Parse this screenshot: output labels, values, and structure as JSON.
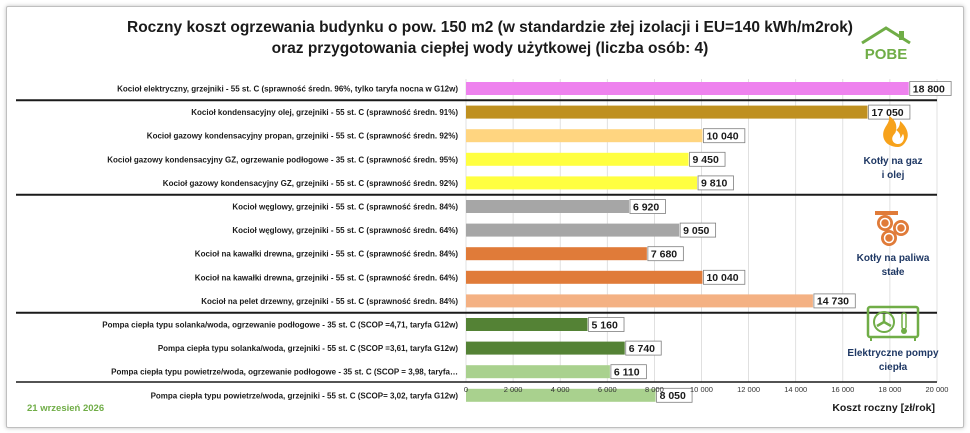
{
  "title_lines": [
    "Roczny koszt ogrzewania budynku o pow. 150 m2 (w standardzie złej izolacji i EU=140 kWh/m2rok)",
    "oraz przygotowania ciepłej wody użytkowej (liczba osób: 4)"
  ],
  "logo_text": "POBE",
  "date_label": "21 wrzesień 2026",
  "groups": [
    {
      "label_lines": [
        "Kotły na gaz",
        "i olej"
      ],
      "icon": "flame-icon"
    },
    {
      "label_lines": [
        "Kotły na paliwa",
        "stałe"
      ],
      "icon": "firewood-logs-icon"
    },
    {
      "label_lines": [
        "Elektryczne pompy",
        "ciepła"
      ],
      "icon": "heat-pump-icon"
    }
  ],
  "colors": {
    "title": "#1a1a1a",
    "group_label": "#1f3864",
    "date": "#70ad47",
    "logo": "#70ad47",
    "flame": "#f7a21b"
  },
  "chart_data": {
    "type": "bar",
    "orientation": "horizontal",
    "xlabel": "Koszt roczny [zł/rok]",
    "xlim": [
      0,
      20000
    ],
    "x_ticks": [
      "0",
      "2 000",
      "4 000",
      "6 000",
      "8 000",
      "10 000",
      "12 000",
      "14 000",
      "16 000",
      "18 000",
      "20 000"
    ],
    "grid": true,
    "categories": [
      "Kocioł  elektryczny,  grzejniki - 55 st. C  (sprawność średn. 96%, tylko taryfa nocna w G12w)",
      "Kocioł  kondensacyjny olej,  grzejniki - 55 st. C  (sprawność średn. 91%)",
      "Kocioł gazowy kondensacyjny propan, grzejniki - 55 st. C (sprawność średn. 92%)",
      "Kocioł gazowy kondensacyjny GZ, ogrzewanie podłogowe - 35 st. C (sprawność średn. 95%)",
      "Kocioł gazowy kondensacyjny GZ, grzejniki - 55 st. C (sprawność średn. 92%)",
      "Kocioł węglowy,  grzejniki - 55 st. C (sprawność średn. 84%)",
      "Kocioł węglowy,  grzejniki - 55 st. C (sprawność średn. 64%)",
      "Kocioł na kawałki drewna, grzejniki - 55 st. C (sprawność średn. 84%)",
      "Kocioł na kawałki drewna, grzejniki - 55 st. C (sprawność średn. 64%)",
      "Kocioł na pelet drzewny, grzejniki - 55 st. C (sprawność średn. 84%)",
      "Pompa ciepła typu solanka/woda, ogrzewanie podłogowe - 35 st. C (SCOP =4,71, taryfa G12w)",
      "Pompa ciepła typu solanka/woda, grzejniki - 55 st. C (SCOP =3,61, taryfa G12w)",
      "Pompa ciepła typu powietrze/woda, ogrzewanie podłogowe - 35 st. C (SCOP = 3,98, taryfa…",
      "Pompa ciepła typu powietrze/woda, grzejniki - 55 st. C (SCOP= 3,02, taryfa G12w)"
    ],
    "values": [
      18800,
      17050,
      10040,
      9450,
      9810,
      6920,
      9050,
      7680,
      10040,
      14730,
      5160,
      6740,
      6110,
      8050
    ],
    "value_labels": [
      "18 800",
      "17 050",
      "10 040",
      "9 450",
      "9 810",
      "6 920",
      "9 050",
      "7 680",
      "10 040",
      "14 730",
      "5 160",
      "6 740",
      "6 110",
      "8 050"
    ],
    "bar_colors": [
      "#ee82ee",
      "#bf9020",
      "#ffd580",
      "#ffff40",
      "#ffff40",
      "#a6a6a6",
      "#a6a6a6",
      "#e07b39",
      "#e07b39",
      "#f4b183",
      "#548235",
      "#548235",
      "#a9d18e",
      "#a9d18e"
    ]
  }
}
